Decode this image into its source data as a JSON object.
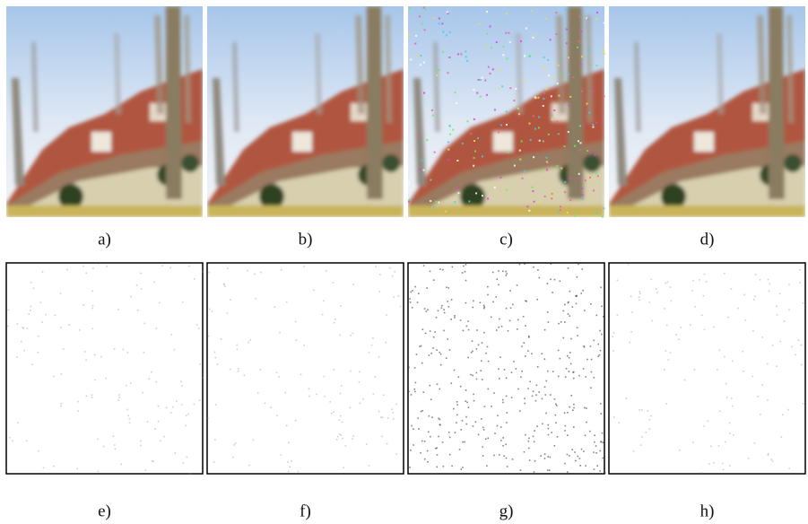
{
  "labels": [
    "a)",
    "b)",
    "c)",
    "d)",
    "e)",
    "f)",
    "g)",
    "h)"
  ]
}
